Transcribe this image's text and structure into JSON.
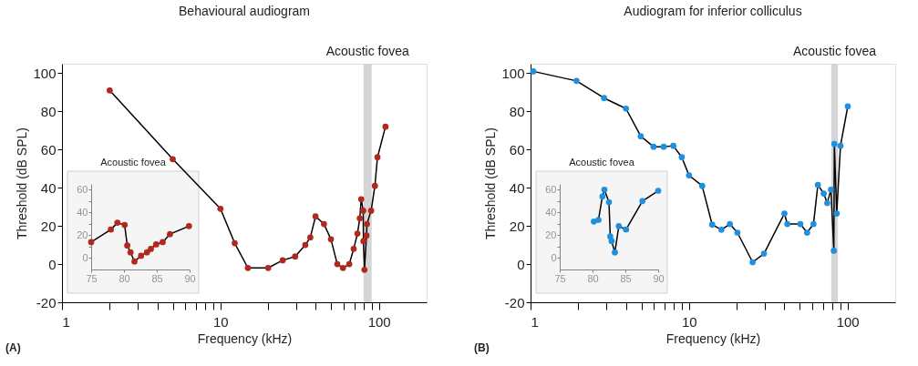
{
  "chart_data": [
    {
      "type": "line",
      "title": "Behavioural audiogram",
      "xlabel": "Frequency (kHz)",
      "ylabel": "Threshold (dB SPL)",
      "log": "x",
      "xlim": [
        1,
        200
      ],
      "xticks": [
        1,
        {
          "value": 2,
          "label": null
        },
        {
          "value": 3,
          "label": null
        },
        {
          "value": 4,
          "label": null
        },
        {
          "value": 5,
          "label": null
        },
        {
          "value": 6,
          "label": null
        },
        {
          "value": 7,
          "label": null
        },
        {
          "value": 8,
          "label": null
        },
        {
          "value": 9,
          "label": null
        },
        10,
        {
          "value": 20,
          "label": null
        },
        {
          "value": 30,
          "label": null
        },
        {
          "value": 40,
          "label": null
        },
        {
          "value": 50,
          "label": null
        },
        {
          "value": 60,
          "label": null
        },
        {
          "value": 70,
          "label": null
        },
        {
          "value": 80,
          "label": null
        },
        {
          "value": 90,
          "label": null
        },
        100
      ],
      "ylim": [
        -20,
        105
      ],
      "yticks": [
        -20,
        0,
        20,
        40,
        60,
        80,
        100
      ],
      "marker": "circle",
      "bands": [
        {
          "axis": "x",
          "from": 80,
          "to": 90,
          "label": "Acoustic fovea",
          "color": "#d0d0d0"
        }
      ],
      "annotations": [
        "(A)"
      ],
      "series": [
        {
          "color": "#b0281e",
          "x": [
            2,
            5,
            10,
            12.3,
            14.9,
            20,
            24.7,
            29.6,
            34.3,
            36.9,
            39.8,
            45,
            49.8,
            54.6,
            59.3,
            65,
            69.3,
            73.2,
            75.7,
            77.3,
            79.6,
            79.8,
            81,
            83.5,
            84,
            89.3,
            94.3,
            97.9,
            110
          ],
          "values": [
            91,
            55,
            29,
            11,
            -2,
            -2,
            2,
            4,
            10,
            14,
            25,
            21,
            13,
            0,
            -2,
            0,
            8,
            16,
            24,
            34,
            28,
            12,
            -3,
            15,
            21,
            28,
            41,
            56,
            72
          ]
        }
      ]
    },
    {
      "type": "line",
      "title": "Acoustic fovea",
      "xlim": [
        75,
        90
      ],
      "xticks": [
        75,
        80,
        85,
        90
      ],
      "ylim": [
        -10,
        65
      ],
      "yticks": [
        0,
        {
          "value": 10,
          "label": null
        },
        20,
        {
          "value": 30,
          "label": null
        },
        40,
        {
          "value": 50,
          "label": null
        },
        60
      ],
      "marker": "circle",
      "series": [
        {
          "color": "#b0281e",
          "x": [
            75,
            78,
            79,
            80.1,
            80.5,
            81,
            81.6,
            82.6,
            83.5,
            84.1,
            84.9,
            85.9,
            87,
            89.9
          ],
          "values": [
            14,
            25,
            31,
            29,
            11,
            5,
            -3,
            2,
            5,
            8,
            12,
            14,
            21,
            28
          ]
        }
      ]
    },
    {
      "type": "line",
      "title": "Audiogram for inferior colliculus",
      "xlabel": "Frequency (kHz)",
      "ylabel": "Threshold (dB SPL)",
      "log": "x",
      "xlim": [
        1,
        200
      ],
      "xticks": [
        1,
        {
          "value": 2,
          "label": null
        },
        {
          "value": 3,
          "label": null
        },
        {
          "value": 4,
          "label": null
        },
        {
          "value": 5,
          "label": null
        },
        {
          "value": 6,
          "label": null
        },
        {
          "value": 7,
          "label": null
        },
        {
          "value": 8,
          "label": null
        },
        {
          "value": 9,
          "label": null
        },
        10,
        {
          "value": 20,
          "label": null
        },
        {
          "value": 30,
          "label": null
        },
        {
          "value": 40,
          "label": null
        },
        {
          "value": 50,
          "label": null
        },
        {
          "value": 60,
          "label": null
        },
        {
          "value": 70,
          "label": null
        },
        {
          "value": 80,
          "label": null
        },
        {
          "value": 90,
          "label": null
        },
        100
      ],
      "ylim": [
        -20,
        105
      ],
      "yticks": [
        -20,
        0,
        20,
        40,
        60,
        80,
        100
      ],
      "marker": "circle",
      "bands": [
        {
          "axis": "x",
          "from": 79,
          "to": 87,
          "label": "Acoustic fovea",
          "color": "#d0d0d0"
        }
      ],
      "annotations": [
        "(B)"
      ],
      "series": [
        {
          "color": "#1f8fe0",
          "x": [
            1.04,
            1.95,
            2.91,
            4.0,
            4.96,
            5.97,
            6.92,
            7.96,
            9.0,
            10,
            12.1,
            14.0,
            16.0,
            18.1,
            20.2,
            25.2,
            29.7,
            40,
            41.7,
            50.4,
            55.6,
            61,
            65,
            70.8,
            74.5,
            78.6,
            82,
            82.6,
            85.5,
            90.3,
            100.4
          ],
          "values": [
            101,
            96,
            87,
            81.5,
            67,
            61.5,
            61.5,
            62,
            56,
            46.5,
            41,
            20.7,
            18,
            21,
            16.5,
            1,
            5.5,
            26.5,
            21,
            21,
            16.5,
            21,
            41.5,
            37,
            32,
            39,
            7,
            63,
            26.5,
            62,
            82.7
          ]
        }
      ]
    },
    {
      "type": "line",
      "title": "Acoustic fovea",
      "xlim": [
        75,
        90
      ],
      "xticks": [
        75,
        80,
        85,
        90
      ],
      "ylim": [
        -10,
        65
      ],
      "yticks": [
        0,
        {
          "value": 10,
          "label": null
        },
        20,
        {
          "value": 30,
          "label": null
        },
        40,
        {
          "value": 50,
          "label": null
        },
        60
      ],
      "marker": "circle",
      "series": [
        {
          "color": "#1f8fe0",
          "x": [
            80.2,
            80.9,
            81.5,
            81.8,
            82.5,
            82.7,
            82.9,
            83.4,
            84.0,
            85.1,
            87.6,
            90.0
          ],
          "values": [
            32,
            33.5,
            54,
            60,
            49,
            19,
            15,
            5,
            28,
            25,
            50,
            59
          ]
        }
      ]
    }
  ]
}
